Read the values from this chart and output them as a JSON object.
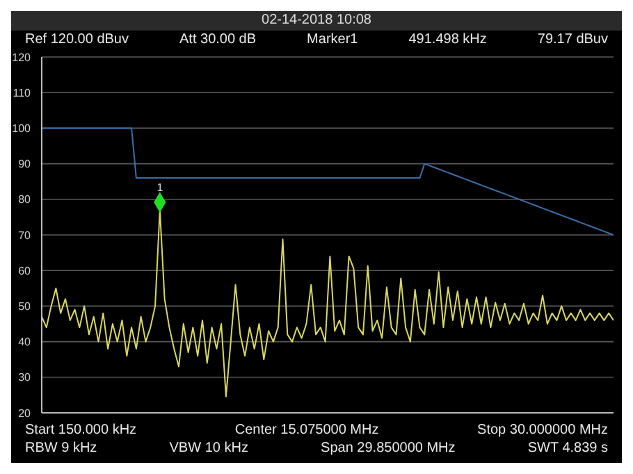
{
  "chart_data": {
    "type": "line",
    "title": "02-14-2018 10:08",
    "annotations": [
      "Ref 120.00 dBuv",
      "Att 30.00 dB",
      "Marker1",
      "491.498 kHz",
      "79.17 dBuv",
      "Start 150.000 kHz",
      "Center 15.075000 MHz",
      "Stop 30.000000 MHz",
      "RBW 9 kHz",
      "VBW 10 kHz",
      "Span 29.850000 MHz",
      "SWT 4.839 s",
      {
        "text": "1",
        "y": 79.17
      }
    ],
    "grid": "y",
    "marker": "none",
    "line_style": "solid",
    "categories": [
      null,
      null,
      null,
      null,
      null,
      null,
      null,
      null,
      null,
      null,
      null,
      null,
      null,
      null,
      null,
      null,
      null,
      null,
      null,
      null,
      null,
      null,
      null,
      null,
      null,
      null,
      null,
      null,
      null,
      null,
      null,
      null,
      null,
      null,
      null,
      null,
      null,
      null,
      null,
      null,
      null,
      null,
      null,
      null,
      null,
      null,
      null,
      null,
      null,
      null,
      null,
      null,
      null,
      null,
      null,
      null,
      null,
      null,
      null,
      null,
      null,
      null,
      null,
      null,
      null,
      null,
      null,
      null,
      null,
      null,
      null,
      null,
      null,
      null,
      null,
      null,
      null,
      null,
      null,
      null,
      null,
      null,
      null,
      null,
      null,
      null,
      null,
      null,
      null,
      null,
      null,
      null,
      null,
      null,
      null,
      null,
      null,
      null,
      null,
      null,
      null,
      null,
      null,
      null,
      null,
      null,
      null,
      null,
      null,
      null,
      null,
      null,
      null,
      null,
      null,
      null,
      null,
      null,
      null,
      null,
      null,
      null
    ],
    "ylim": [
      20,
      120
    ],
    "yticks": [
      20,
      30,
      40,
      50,
      60,
      70,
      80,
      90,
      100,
      110,
      120
    ],
    "tick_labels": "y",
    "series": [
      {
        "color": "#d8d860",
        "values": [
          47,
          44,
          50,
          55,
          48,
          52,
          46,
          49,
          44,
          50,
          42,
          47,
          40,
          48,
          38,
          45,
          40,
          46,
          36,
          44,
          38,
          47,
          40,
          44,
          50,
          77,
          52,
          44,
          38,
          33,
          45,
          37,
          44,
          36,
          46,
          34,
          44,
          38,
          45,
          24.6,
          40,
          56,
          42,
          36,
          44,
          38,
          45,
          35,
          43,
          40,
          44,
          68.8,
          42,
          40,
          44,
          41,
          45,
          56,
          42,
          44,
          40,
          64,
          43,
          46,
          42,
          64,
          60.6,
          44,
          42,
          61.3,
          43,
          46,
          41,
          55.3,
          44,
          42,
          57.8,
          44,
          40,
          54.6,
          44,
          42,
          54.6,
          45,
          59.6,
          44,
          55.3,
          46,
          54.2,
          44,
          52,
          45,
          52.5,
          45,
          52.5,
          44,
          51,
          46,
          50.7,
          45,
          48,
          46,
          50.7,
          45,
          48,
          46,
          53,
          45,
          48,
          46,
          50,
          46,
          48,
          46,
          49,
          46,
          48,
          46,
          48,
          46,
          48,
          46
        ]
      },
      {
        "color": "#3a6ea8",
        "values": [
          100,
          100,
          100,
          100,
          100,
          100,
          100,
          100,
          100,
          100,
          100,
          100,
          100,
          100,
          100,
          100,
          100,
          100,
          100,
          100,
          86,
          86,
          86,
          86,
          86,
          86,
          86,
          86,
          86,
          86,
          86,
          86,
          86,
          86,
          86,
          86,
          86,
          86,
          86,
          86,
          86,
          86,
          86,
          86,
          86,
          86,
          86,
          86,
          86,
          86,
          86,
          86,
          86,
          86,
          86,
          86,
          86,
          86,
          86,
          86,
          86,
          86,
          86,
          86,
          86,
          86,
          86,
          86,
          86,
          86,
          86,
          86,
          86,
          86,
          86,
          86,
          86,
          86,
          86,
          86,
          86,
          90,
          89.5,
          89,
          88.5,
          88,
          87.5,
          87,
          86.5,
          86,
          85.5,
          85,
          84.5,
          84,
          83.5,
          83,
          82.5,
          82,
          81.5,
          81,
          80.5,
          80,
          79.5,
          79,
          78.5,
          78,
          77.5,
          77,
          76.5,
          76,
          75.5,
          75,
          74.5,
          74,
          73.5,
          73,
          72.5,
          72,
          71.5,
          71,
          70.5,
          70
        ]
      },
      {
        "type": "scatter",
        "color": "#22dd22",
        "marker": "diamond",
        "values": [
          null,
          null,
          null,
          null,
          null,
          null,
          null,
          null,
          null,
          null,
          null,
          null,
          null,
          null,
          null,
          null,
          null,
          null,
          null,
          null,
          null,
          null,
          null,
          null,
          null,
          79.17,
          null,
          null,
          null,
          null,
          null,
          null,
          null,
          null,
          null,
          null,
          null,
          null,
          null,
          null,
          null,
          null,
          null,
          null,
          null,
          null,
          null,
          null,
          null,
          null,
          null,
          null,
          null,
          null,
          null,
          null,
          null,
          null,
          null,
          null,
          null,
          null,
          null,
          null,
          null,
          null,
          null,
          null,
          null,
          null,
          null,
          null,
          null,
          null,
          null,
          null,
          null,
          null,
          null,
          null,
          null,
          null,
          null,
          null,
          null,
          null,
          null,
          null,
          null,
          null,
          null,
          null,
          null,
          null,
          null,
          null,
          null,
          null,
          null,
          null,
          null,
          null,
          null,
          null,
          null,
          null,
          null,
          null,
          null,
          null,
          null,
          null,
          null,
          null,
          null,
          null,
          null,
          null,
          null,
          null,
          null,
          null
        ]
      }
    ]
  }
}
